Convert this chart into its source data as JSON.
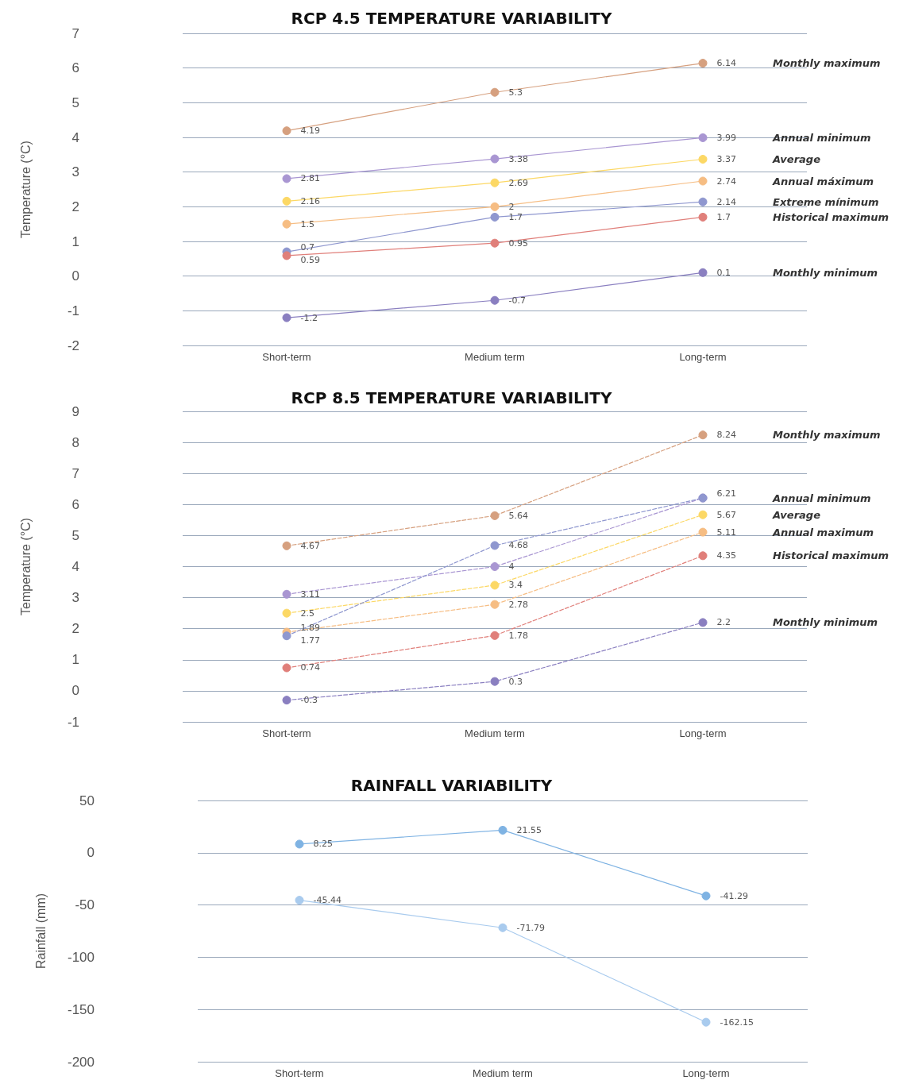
{
  "chart_data": [
    {
      "type": "line",
      "title": "RCP 4.5 TEMPERATURE VARIABILITY",
      "ylabel": "Temperature (°C)",
      "categories": [
        "Short-term",
        "Medium term",
        "Long-term"
      ],
      "ylim": [
        -2,
        7
      ],
      "yticks": [
        -2,
        -1,
        0,
        1,
        2,
        3,
        4,
        5,
        6,
        7
      ],
      "grid": "y",
      "marker": "circle",
      "line_style": "solid",
      "data_labels": true,
      "series": [
        {
          "name": "Monthly maximum",
          "color": "#d6a07f",
          "values": [
            4.19,
            5.3,
            6.14
          ]
        },
        {
          "name": "Annual minimum",
          "color": "#a996d2",
          "values": [
            2.81,
            3.38,
            3.99
          ]
        },
        {
          "name": "Average",
          "color": "#fcd865",
          "values": [
            2.16,
            2.69,
            3.37
          ]
        },
        {
          "name": "Annual máximum",
          "color": "#f6bd83",
          "values": [
            1.5,
            2,
            2.74
          ]
        },
        {
          "name": "Extreme mínimum",
          "color": "#8f97cf",
          "values": [
            0.7,
            1.7,
            2.14
          ]
        },
        {
          "name": "Historical maximum",
          "color": "#e07f7a",
          "values": [
            0.59,
            0.95,
            1.7
          ]
        },
        {
          "name": "Monthly minimum",
          "color": "#8a7fc0",
          "values": [
            -1.2,
            -0.7,
            0.1
          ]
        }
      ]
    },
    {
      "type": "line",
      "title": "RCP 8.5 TEMPERATURE VARIABILITY",
      "ylabel": "Temperature (°C)",
      "categories": [
        "Short-term",
        "Medium term",
        "Long-term"
      ],
      "ylim": [
        -1,
        9
      ],
      "yticks": [
        -1,
        0,
        1,
        2,
        3,
        4,
        5,
        6,
        7,
        8,
        9
      ],
      "grid": "y",
      "marker": "circle",
      "line_style": "dashed",
      "data_labels": true,
      "series": [
        {
          "name": "Monthly maximum",
          "color": "#d6a07f",
          "values": [
            4.67,
            5.64,
            8.24
          ]
        },
        {
          "name": "Annual minimum",
          "color": "#a996d2",
          "values": [
            3.11,
            4,
            6.21
          ]
        },
        {
          "name": "Average",
          "color": "#fcd865",
          "values": [
            2.5,
            3.4,
            5.67
          ]
        },
        {
          "name": "Annual maximum",
          "color": "#f6bd83",
          "values": [
            1.89,
            2.78,
            5.11
          ]
        },
        {
          "color": "#8f97cf",
          "values": [
            1.77,
            4.68,
            6.21
          ],
          "value_labels": [
            "1.77",
            "4.68",
            null
          ]
        },
        {
          "name": "Historical maximum",
          "color": "#e07f7a",
          "values": [
            0.74,
            1.78,
            4.35
          ]
        },
        {
          "name": "Monthly minimum",
          "color": "#8a7fc0",
          "values": [
            -0.3,
            0.3,
            2.2
          ]
        }
      ]
    },
    {
      "type": "line",
      "title": "RAINFALL VARIABILITY",
      "ylabel": "Rainfall (mm)",
      "categories": [
        "Short-term",
        "Medium term",
        "Long-term"
      ],
      "ylim": [
        -200,
        50
      ],
      "yticks": [
        -200,
        -150,
        -100,
        -50,
        0,
        50
      ],
      "grid": "y",
      "marker": "circle",
      "line_style": "solid",
      "data_labels": true,
      "series": [
        {
          "color": "#7fb3e3",
          "values": [
            8.25,
            21.55,
            -41.29
          ]
        },
        {
          "color": "#a9cbee",
          "values": [
            -45.44,
            -71.79,
            -162.15
          ]
        }
      ]
    }
  ]
}
